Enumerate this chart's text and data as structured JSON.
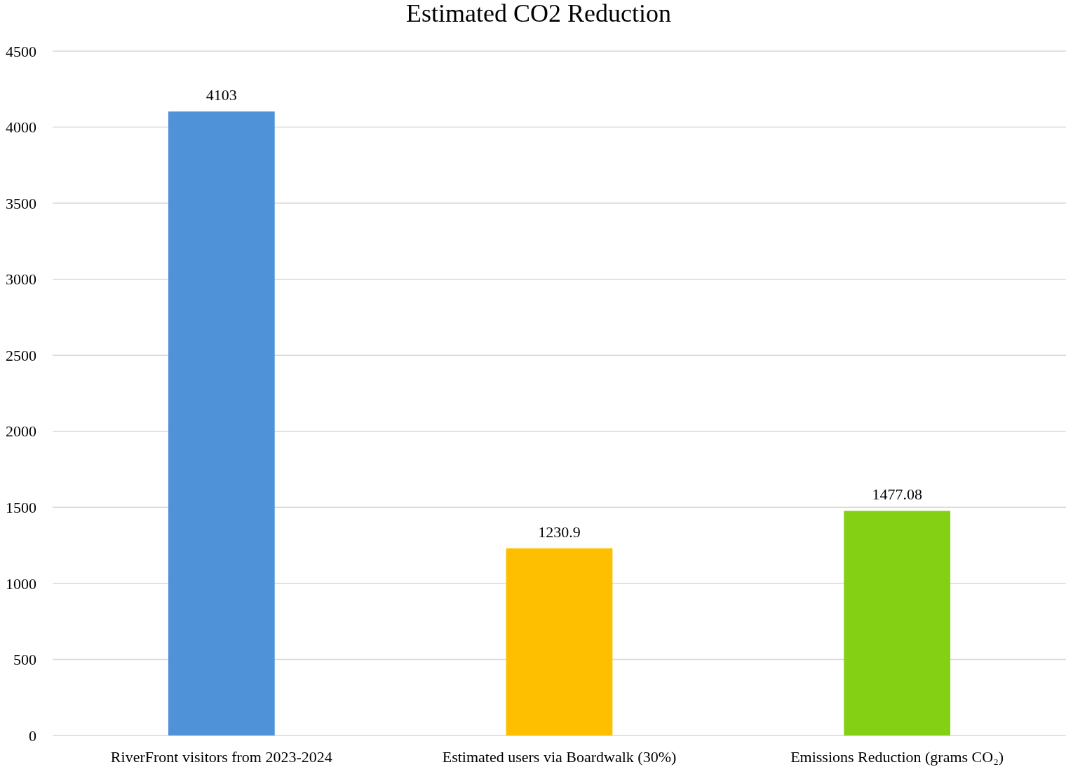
{
  "chart_data": {
    "type": "bar",
    "title": "Estimated CO2 Reduction",
    "categories": [
      "RiverFront visitors from 2023-2024",
      "Estimated users via Boardwalk (30%)",
      "Emissions Reduction (grams CO₂)"
    ],
    "values": [
      4103,
      1230.9,
      1477.08
    ],
    "colors": [
      "#4f92d8",
      "#fdbf00",
      "#84d014"
    ],
    "ylim": [
      0,
      4500
    ],
    "yticks": [
      0,
      500,
      1000,
      1500,
      2000,
      2500,
      3000,
      3500,
      4000,
      4500
    ],
    "grid": "y",
    "data_labels": true
  }
}
